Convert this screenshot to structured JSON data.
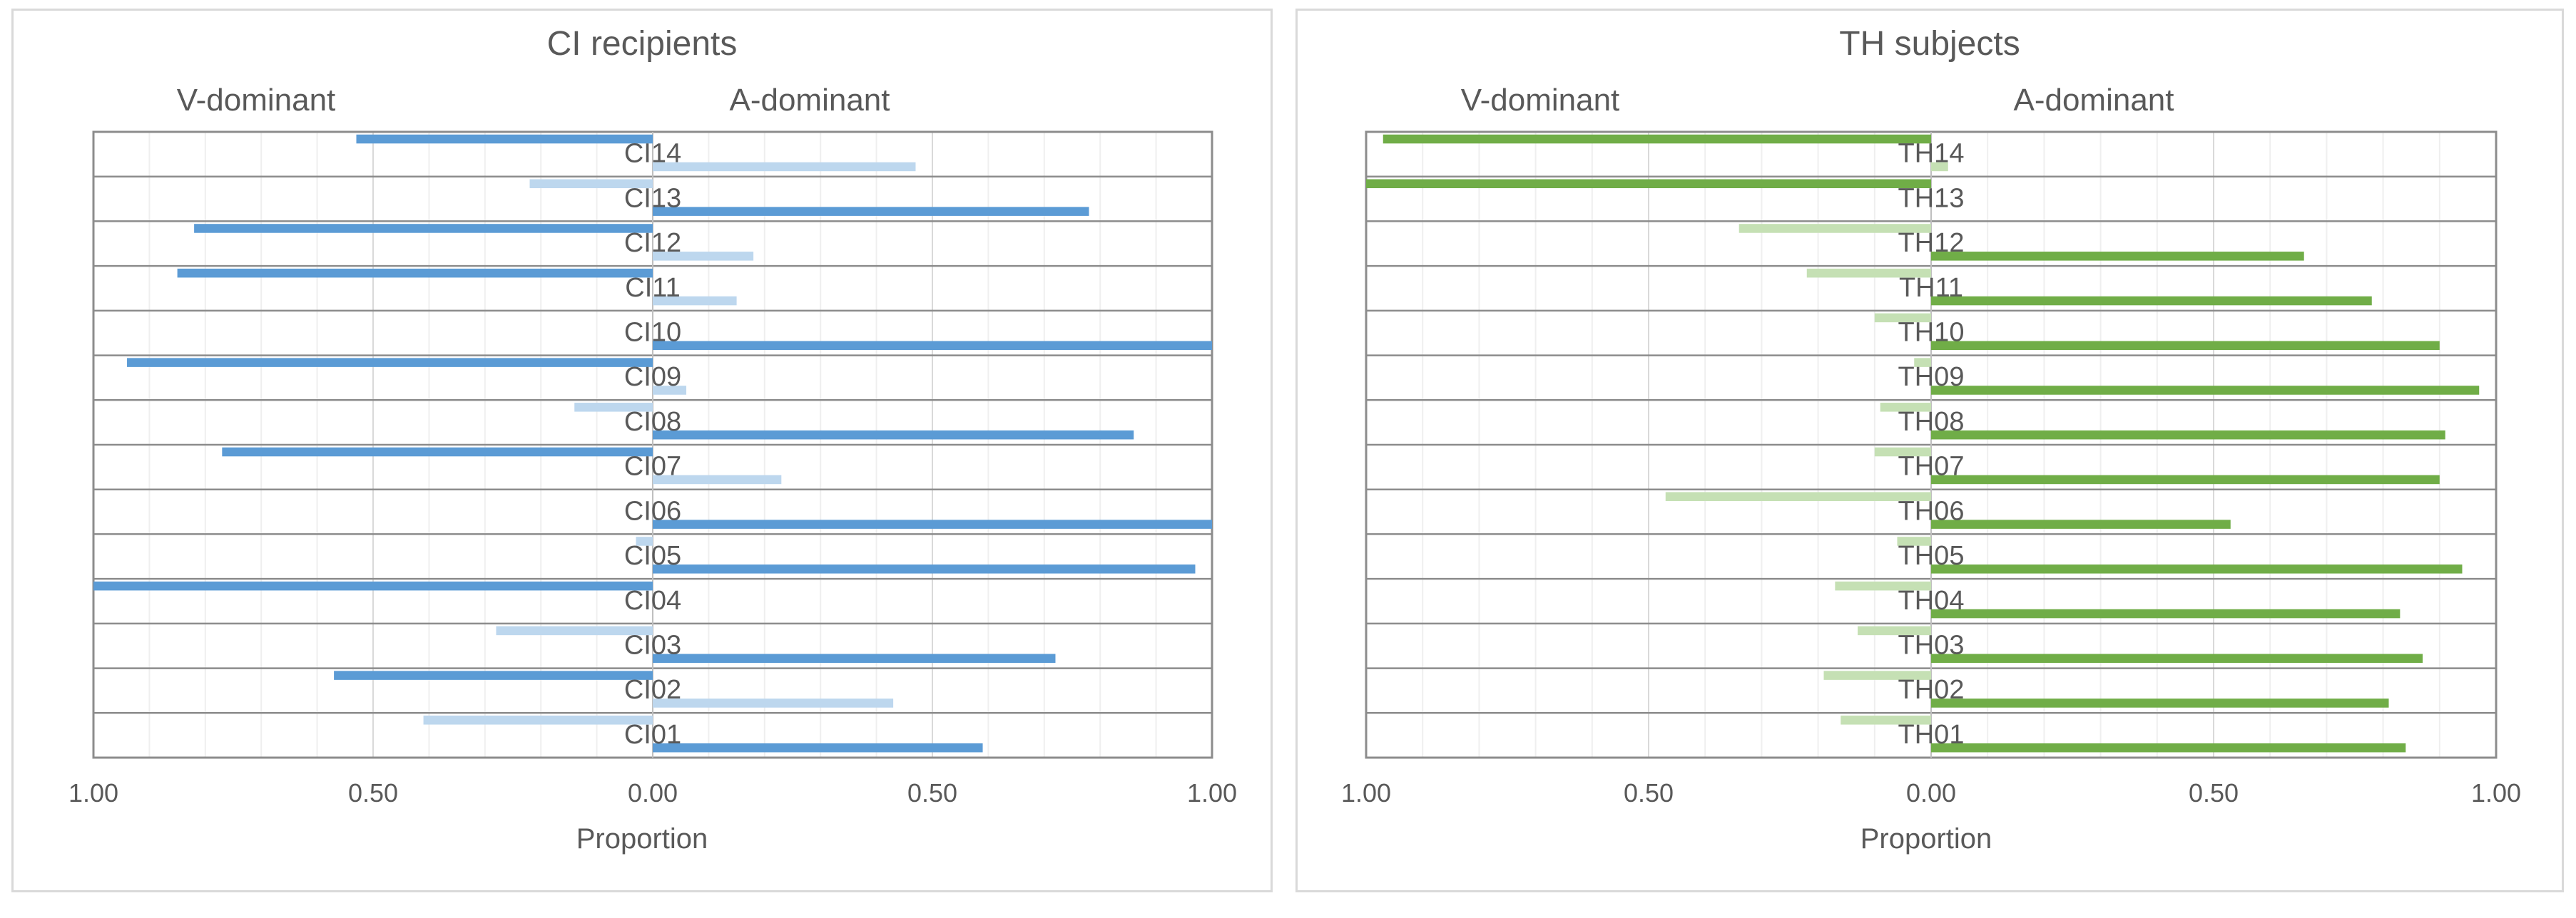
{
  "chart_data": [
    {
      "type": "bar",
      "title": "CI recipients",
      "left_label": "V-dominant",
      "right_label": "A-dominant",
      "xlabel": "Proportion",
      "xlim": [
        -1,
        1
      ],
      "x_ticks": [
        "1.00",
        "0.50",
        "0.00",
        "0.50",
        "1.00"
      ],
      "categories": [
        "CI14",
        "CI13",
        "CI12",
        "CI11",
        "CI10",
        "CI09",
        "CI08",
        "CI07",
        "CI06",
        "CI05",
        "CI04",
        "CI03",
        "CI02",
        "CI01"
      ],
      "v_dominant": [
        0.53,
        0.22,
        0.82,
        0.85,
        0.0,
        0.94,
        0.14,
        0.77,
        0.0,
        0.03,
        1.0,
        0.28,
        0.57,
        0.41
      ],
      "a_dominant": [
        0.47,
        0.78,
        0.18,
        0.15,
        1.0,
        0.06,
        0.86,
        0.23,
        1.0,
        0.97,
        0.0,
        0.72,
        0.43,
        0.59
      ],
      "dominant_side": [
        "V",
        "A",
        "V",
        "V",
        "A",
        "V",
        "A",
        "V",
        "A",
        "A",
        "V",
        "A",
        "V",
        "A"
      ],
      "colors": {
        "strong": "#5b9bd5",
        "light": "#bdd7ee"
      },
      "grid": true
    },
    {
      "type": "bar",
      "title": "TH subjects",
      "left_label": "V-dominant",
      "right_label": "A-dominant",
      "xlabel": "Proportion",
      "xlim": [
        -1,
        1
      ],
      "x_ticks": [
        "1.00",
        "0.50",
        "0.00",
        "0.50",
        "1.00"
      ],
      "categories": [
        "TH14",
        "TH13",
        "TH12",
        "TH11",
        "TH10",
        "TH09",
        "TH08",
        "TH07",
        "TH06",
        "TH05",
        "TH04",
        "TH03",
        "TH02",
        "TH01"
      ],
      "v_dominant": [
        0.97,
        1.0,
        0.34,
        0.22,
        0.1,
        0.03,
        0.09,
        0.1,
        0.47,
        0.06,
        0.17,
        0.13,
        0.19,
        0.16
      ],
      "a_dominant": [
        0.03,
        0.0,
        0.66,
        0.78,
        0.9,
        0.97,
        0.91,
        0.9,
        0.53,
        0.94,
        0.83,
        0.87,
        0.81,
        0.84
      ],
      "dominant_side": [
        "V",
        "V",
        "A",
        "A",
        "A",
        "A",
        "A",
        "A",
        "A",
        "A",
        "A",
        "A",
        "A",
        "A"
      ],
      "colors": {
        "strong": "#70ad47",
        "light": "#c5e0b4"
      },
      "grid": true
    }
  ]
}
